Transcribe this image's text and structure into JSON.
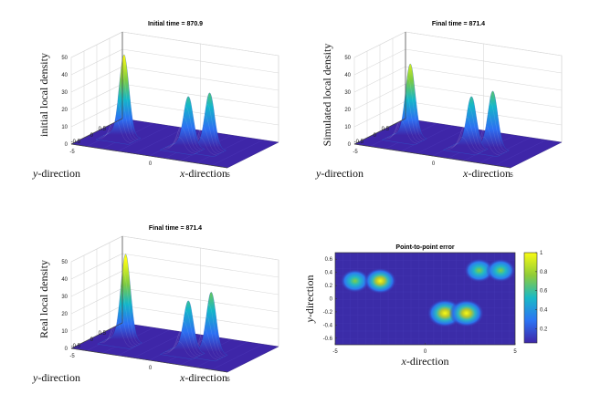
{
  "chart_data": [
    {
      "type": "surface",
      "title": "Initial time = 870.9",
      "zlabel": "initial local density",
      "xlabel": "x-direction",
      "ylabel": "y-direction",
      "zlim": [
        0,
        50
      ],
      "zticks": [
        "0",
        "10",
        "20",
        "30",
        "40",
        "50"
      ],
      "xticks": [
        "-5",
        "0",
        "5"
      ],
      "yticks": [
        "0.5",
        "0",
        "-0.5"
      ],
      "peaks": [
        {
          "x": -3.2,
          "y": 0.05,
          "height": 47
        },
        {
          "x": 1.0,
          "y": 0.0,
          "height": 29
        },
        {
          "x": 2.2,
          "y": 0.1,
          "height": 32
        }
      ]
    },
    {
      "type": "surface",
      "title": "Final time = 871.4",
      "zlabel": "Simulated local density",
      "xlabel": "x-direction",
      "ylabel": "y-direction",
      "zlim": [
        0,
        50
      ],
      "zticks": [
        "0",
        "10",
        "20",
        "30",
        "40",
        "50"
      ],
      "xticks": [
        "-5",
        "0",
        "5"
      ],
      "yticks": [
        "0.5",
        "0",
        "-0.5"
      ],
      "peaks": [
        {
          "x": -3.0,
          "y": 0.05,
          "height": 42
        },
        {
          "x": 1.0,
          "y": 0.0,
          "height": 29
        },
        {
          "x": 2.2,
          "y": 0.1,
          "height": 33
        }
      ]
    },
    {
      "type": "surface",
      "title": "Final time = 871.4",
      "zlabel": "Real local density",
      "xlabel": "x-direction",
      "ylabel": "y-direction",
      "zlim": [
        0,
        50
      ],
      "zticks": [
        "0",
        "10",
        "20",
        "30",
        "40",
        "50"
      ],
      "xticks": [
        "-5",
        "0",
        "5"
      ],
      "yticks": [
        "0.5",
        "0",
        "-0.5"
      ],
      "peaks": [
        {
          "x": -3.1,
          "y": 0.05,
          "height": 50
        },
        {
          "x": 1.0,
          "y": 0.0,
          "height": 29
        },
        {
          "x": 2.3,
          "y": 0.1,
          "height": 35
        }
      ]
    },
    {
      "type": "heatmap",
      "title": "Point-to-point error",
      "xlabel": "x-direction",
      "ylabel": "y-direction",
      "xlim": [
        -5,
        5
      ],
      "ylim": [
        -0.7,
        0.7
      ],
      "xticks": [
        "-5",
        "0",
        "5"
      ],
      "yticks": [
        "0.6",
        "0.4",
        "0.2",
        "0",
        "-0.2",
        "-0.4",
        "-0.6"
      ],
      "colorbar_ticks": [
        "1",
        "0.8",
        "0.6",
        "0.4",
        "0.2"
      ],
      "blobs": [
        {
          "x": -3.9,
          "y": 0.27,
          "value": 0.55
        },
        {
          "x": -2.5,
          "y": 0.27,
          "value": 0.75
        },
        {
          "x": 1.1,
          "y": -0.22,
          "value": 0.95
        },
        {
          "x": 2.3,
          "y": -0.22,
          "value": 0.9
        },
        {
          "x": 3.0,
          "y": 0.43,
          "value": 0.6
        },
        {
          "x": 4.2,
          "y": 0.43,
          "value": 0.55
        }
      ]
    }
  ]
}
